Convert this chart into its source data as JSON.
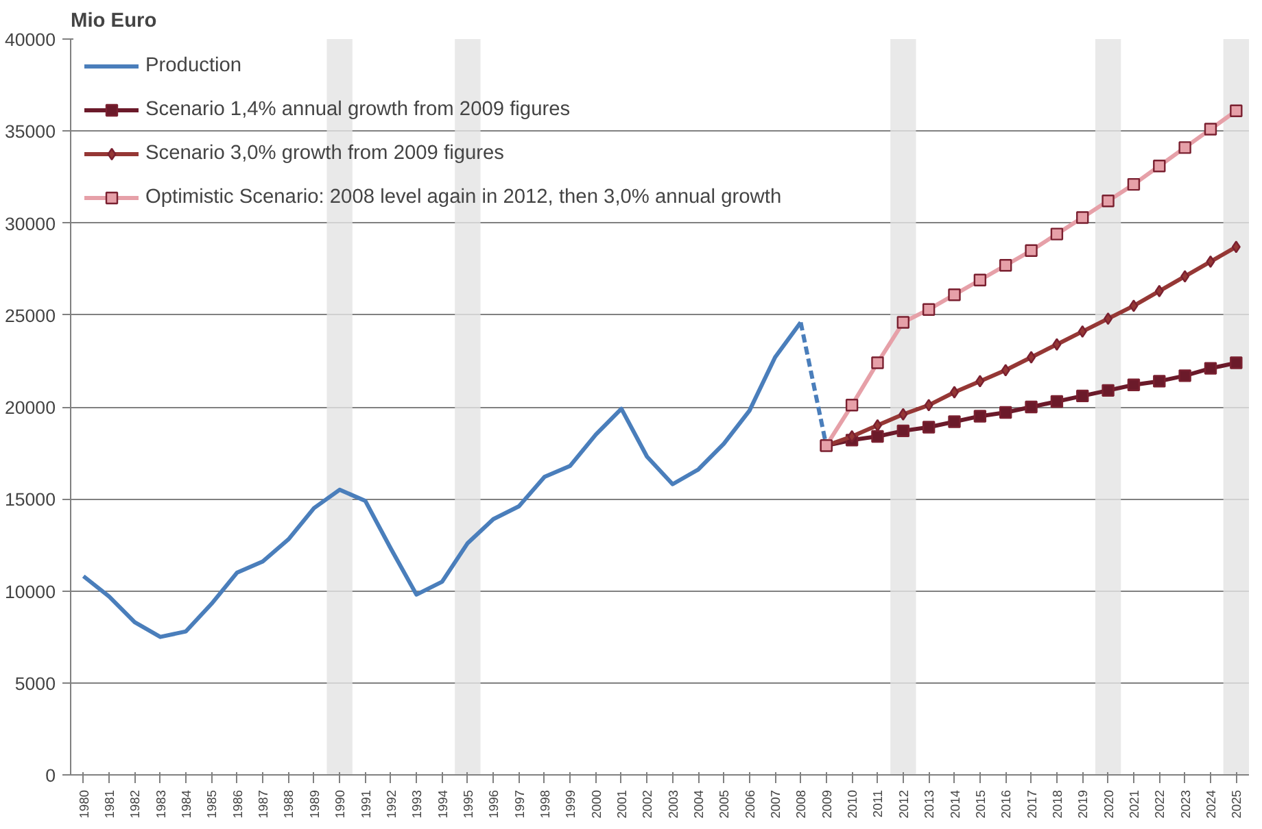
{
  "chart_data": {
    "type": "line",
    "ylabel": "Mio Euro",
    "xlim": [
      1979.5,
      2025.5
    ],
    "xticks": [
      1980,
      1981,
      1982,
      1983,
      1984,
      1985,
      1986,
      1987,
      1988,
      1989,
      1990,
      1991,
      1992,
      1993,
      1994,
      1995,
      1996,
      1997,
      1998,
      1999,
      2000,
      2001,
      2002,
      2003,
      2004,
      2005,
      2006,
      2007,
      2008,
      2009,
      2010,
      2011,
      2012,
      2013,
      2014,
      2015,
      2016,
      2017,
      2018,
      2019,
      2020,
      2021,
      2022,
      2023,
      2024,
      2025
    ],
    "ylim": [
      0,
      40000
    ],
    "yticks": [
      0,
      5000,
      10000,
      15000,
      20000,
      25000,
      30000,
      35000,
      40000
    ],
    "grid": "y",
    "legend": "top left",
    "series": [
      {
        "name": "Production",
        "color": "#4a7ebb",
        "line_style": "solid",
        "x": [
          1980,
          1981,
          1982,
          1983,
          1984,
          1985,
          1986,
          1987,
          1988,
          1989,
          1990,
          1991,
          1992,
          1993,
          1994,
          1995,
          1996,
          1997,
          1998,
          1999,
          2000,
          2001,
          2002,
          2003,
          2004,
          2005,
          2006,
          2007,
          2008
        ],
        "values": [
          10800,
          9700,
          8300,
          7500,
          7800,
          9300,
          11000,
          11600,
          12800,
          14500,
          15500,
          14900,
          12300,
          9800,
          10500,
          12600,
          13900,
          14600,
          16200,
          16800,
          18500,
          19900,
          17300,
          15800,
          16600,
          18000,
          19800,
          22700,
          24600
        ]
      },
      {
        "color": "#4a7ebb",
        "line_style": "dashed",
        "x": [
          2008,
          2009
        ],
        "values": [
          24600,
          17900
        ]
      },
      {
        "name": "Scenario 1,4% annual growth from 2009 figures",
        "color": "#6b1a2a",
        "marker": "square",
        "line_style": "solid",
        "x": [
          2009,
          2010,
          2011,
          2012,
          2013,
          2014,
          2015,
          2016,
          2017,
          2018,
          2019,
          2020,
          2021,
          2022,
          2023,
          2024,
          2025
        ],
        "values": [
          17900,
          18200,
          18400,
          18700,
          18900,
          19200,
          19500,
          19700,
          20000,
          20300,
          20600,
          20900,
          21200,
          21400,
          21700,
          22100,
          22400
        ]
      },
      {
        "name": "Scenario 3,0% growth from 2009 figures",
        "color": "#953735",
        "marker": "diamond",
        "line_style": "solid",
        "x": [
          2009,
          2010,
          2011,
          2012,
          2013,
          2014,
          2015,
          2016,
          2017,
          2018,
          2019,
          2020,
          2021,
          2022,
          2023,
          2024,
          2025
        ],
        "values": [
          17900,
          18400,
          19000,
          19600,
          20100,
          20800,
          21400,
          22000,
          22700,
          23400,
          24100,
          24800,
          25500,
          26300,
          27100,
          27900,
          28700
        ]
      },
      {
        "name": "Optimistic Scenario: 2008 level again in 2012, then 3,0% annual growth",
        "color": "#e6a0a8",
        "marker": "square",
        "line_style": "solid",
        "x": [
          2009,
          2010,
          2011,
          2012,
          2013,
          2014,
          2015,
          2016,
          2017,
          2018,
          2019,
          2020,
          2021,
          2022,
          2023,
          2024,
          2025
        ],
        "values": [
          17900,
          20100,
          22400,
          24600,
          25300,
          26100,
          26900,
          27700,
          28500,
          29400,
          30300,
          31200,
          32100,
          33100,
          34100,
          35100,
          36100
        ]
      }
    ],
    "bands": [
      {
        "axis": "x",
        "from": 1989.5,
        "to": 1990.5,
        "color": "#e4e4e4"
      },
      {
        "axis": "x",
        "from": 1994.5,
        "to": 1995.5,
        "color": "#e4e4e4"
      },
      {
        "axis": "x",
        "from": 2011.5,
        "to": 2012.5,
        "color": "#e4e4e4"
      },
      {
        "axis": "x",
        "from": 2019.5,
        "to": 2020.5,
        "color": "#e4e4e4"
      },
      {
        "axis": "x",
        "from": 2024.5,
        "to": 2025.5,
        "color": "#e4e4e4"
      }
    ]
  }
}
